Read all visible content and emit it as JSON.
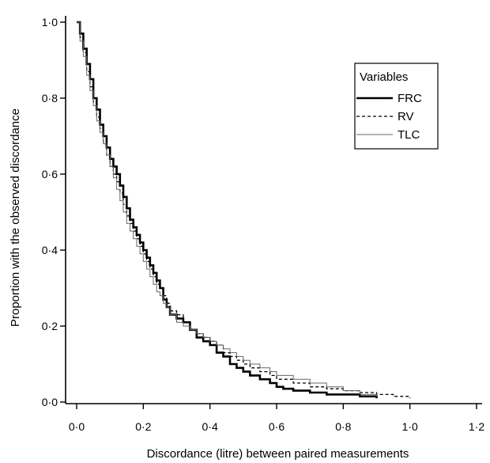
{
  "chart_data": {
    "type": "line",
    "line_shape": "step",
    "xlabel": "Discordance (litre) between paired measurements",
    "ylabel": "Proportion with the observed discordance",
    "xlim": [
      0,
      1.2
    ],
    "ylim": [
      0,
      1.0
    ],
    "x_ticks": [
      "0·0",
      "0·2",
      "0·4",
      "0·6",
      "0·8",
      "1·0",
      "1·2"
    ],
    "y_ticks": [
      "0·0",
      "0·2",
      "0·4",
      "0·6",
      "0·8",
      "1·0"
    ],
    "x_tick_values": [
      0,
      0.2,
      0.4,
      0.6,
      0.8,
      1.0,
      1.2
    ],
    "y_tick_values": [
      0,
      0.2,
      0.4,
      0.6,
      0.8,
      1.0
    ],
    "grid": false,
    "legend": {
      "title": "Variables",
      "position": "top-right"
    },
    "series": [
      {
        "name": "FRC",
        "style": "solid-thick",
        "color": "#000000",
        "x": [
          0.0,
          0.01,
          0.02,
          0.03,
          0.04,
          0.05,
          0.06,
          0.07,
          0.08,
          0.09,
          0.1,
          0.11,
          0.12,
          0.13,
          0.14,
          0.15,
          0.16,
          0.17,
          0.18,
          0.19,
          0.2,
          0.21,
          0.22,
          0.23,
          0.24,
          0.25,
          0.26,
          0.27,
          0.28,
          0.3,
          0.32,
          0.34,
          0.36,
          0.38,
          0.4,
          0.42,
          0.44,
          0.46,
          0.48,
          0.5,
          0.52,
          0.55,
          0.58,
          0.6,
          0.62,
          0.65,
          0.7,
          0.75,
          0.8,
          0.85,
          0.9
        ],
        "y": [
          1.0,
          0.97,
          0.93,
          0.89,
          0.85,
          0.8,
          0.77,
          0.73,
          0.7,
          0.67,
          0.64,
          0.62,
          0.6,
          0.57,
          0.54,
          0.51,
          0.48,
          0.46,
          0.44,
          0.42,
          0.4,
          0.38,
          0.36,
          0.34,
          0.32,
          0.3,
          0.27,
          0.25,
          0.23,
          0.22,
          0.21,
          0.19,
          0.17,
          0.16,
          0.15,
          0.13,
          0.12,
          0.1,
          0.09,
          0.08,
          0.07,
          0.06,
          0.05,
          0.04,
          0.035,
          0.03,
          0.025,
          0.02,
          0.02,
          0.015,
          0.01
        ]
      },
      {
        "name": "RV",
        "style": "dashed",
        "color": "#000000",
        "x": [
          0.0,
          0.01,
          0.02,
          0.03,
          0.04,
          0.05,
          0.06,
          0.07,
          0.08,
          0.09,
          0.1,
          0.11,
          0.12,
          0.13,
          0.14,
          0.15,
          0.16,
          0.17,
          0.18,
          0.19,
          0.2,
          0.21,
          0.22,
          0.23,
          0.24,
          0.25,
          0.26,
          0.27,
          0.28,
          0.3,
          0.32,
          0.34,
          0.36,
          0.38,
          0.4,
          0.42,
          0.44,
          0.46,
          0.48,
          0.5,
          0.52,
          0.55,
          0.58,
          0.6,
          0.65,
          0.7,
          0.75,
          0.8,
          0.85,
          0.9,
          0.95,
          1.0
        ],
        "y": [
          1.0,
          0.96,
          0.92,
          0.87,
          0.83,
          0.79,
          0.75,
          0.72,
          0.68,
          0.65,
          0.62,
          0.6,
          0.58,
          0.55,
          0.52,
          0.49,
          0.47,
          0.45,
          0.43,
          0.41,
          0.39,
          0.37,
          0.35,
          0.33,
          0.31,
          0.3,
          0.28,
          0.26,
          0.24,
          0.23,
          0.21,
          0.19,
          0.18,
          0.17,
          0.16,
          0.15,
          0.13,
          0.12,
          0.11,
          0.1,
          0.09,
          0.08,
          0.07,
          0.06,
          0.05,
          0.04,
          0.035,
          0.03,
          0.025,
          0.02,
          0.015,
          0.01
        ]
      },
      {
        "name": "TLC",
        "style": "solid-thin",
        "color": "#666666",
        "x": [
          0.0,
          0.01,
          0.02,
          0.03,
          0.04,
          0.05,
          0.06,
          0.07,
          0.08,
          0.09,
          0.1,
          0.11,
          0.12,
          0.13,
          0.14,
          0.15,
          0.16,
          0.17,
          0.18,
          0.19,
          0.2,
          0.21,
          0.22,
          0.23,
          0.24,
          0.25,
          0.26,
          0.27,
          0.28,
          0.3,
          0.32,
          0.34,
          0.36,
          0.38,
          0.4,
          0.42,
          0.44,
          0.46,
          0.48,
          0.5,
          0.52,
          0.55,
          0.58,
          0.6,
          0.65,
          0.7,
          0.75,
          0.8,
          0.85,
          0.9
        ],
        "y": [
          1.0,
          0.95,
          0.91,
          0.86,
          0.82,
          0.78,
          0.74,
          0.71,
          0.68,
          0.65,
          0.62,
          0.59,
          0.56,
          0.53,
          0.5,
          0.47,
          0.45,
          0.43,
          0.41,
          0.39,
          0.37,
          0.35,
          0.33,
          0.31,
          0.29,
          0.28,
          0.26,
          0.25,
          0.23,
          0.21,
          0.2,
          0.19,
          0.18,
          0.17,
          0.16,
          0.15,
          0.14,
          0.13,
          0.12,
          0.11,
          0.1,
          0.09,
          0.08,
          0.07,
          0.06,
          0.05,
          0.04,
          0.03,
          0.02,
          0.015
        ]
      }
    ]
  }
}
